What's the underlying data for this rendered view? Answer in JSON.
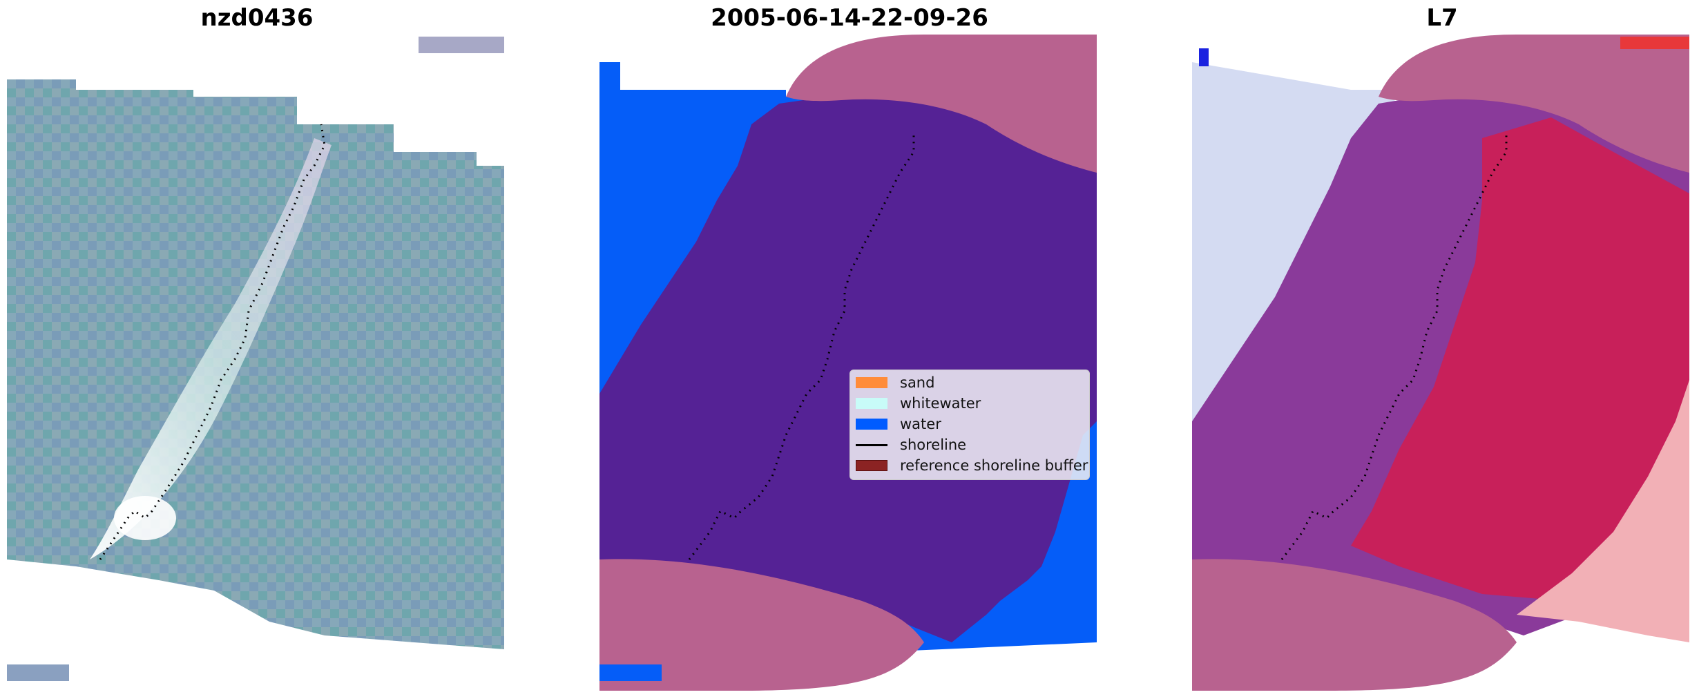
{
  "panels": [
    {
      "title": "nzd0436"
    },
    {
      "title": "2005-06-14-22-09-26"
    },
    {
      "title": "L7"
    }
  ],
  "legend": {
    "placement": "center-right of middle panel",
    "items": [
      {
        "label": "sand",
        "color": "#ff8c3a",
        "kind": "patch"
      },
      {
        "label": "whitewater",
        "color": "#c8fbf8",
        "kind": "patch"
      },
      {
        "label": "water",
        "color": "#005cff",
        "kind": "patch"
      },
      {
        "label": "shoreline",
        "color": "#000000",
        "kind": "line"
      },
      {
        "label": "reference shoreline buffer",
        "color": "#8b2323",
        "kind": "patch"
      }
    ]
  },
  "colors": {
    "rgb_base": "#7aa3b0",
    "sand_class": "#552295",
    "water_class": "#055df8",
    "buffer_overlay": "#b8628f",
    "ndwi_land": "#c2173f",
    "ndwi_water": "#cfd8f2",
    "shoreline": "#000000"
  }
}
